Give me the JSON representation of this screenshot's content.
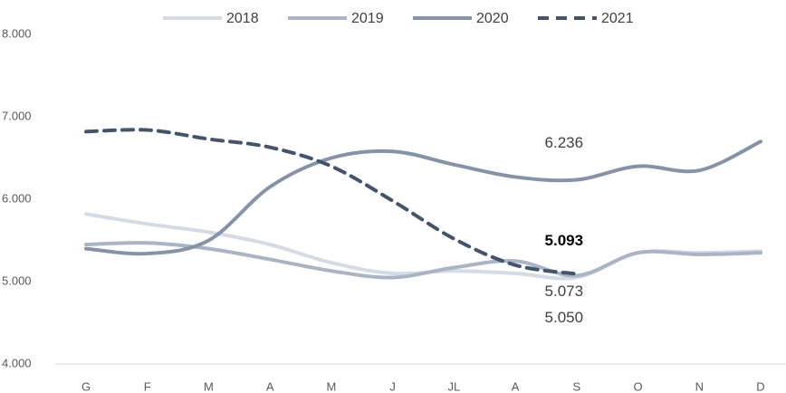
{
  "chart_data": {
    "type": "line",
    "categories": [
      "G",
      "F",
      "M",
      "A",
      "M",
      "J",
      "JL",
      "A",
      "S",
      "O",
      "N",
      "D"
    ],
    "series": [
      {
        "name": "2018",
        "color": "#d5dbe4",
        "dash": false,
        "values": [
          5820,
          5700,
          5600,
          5450,
          5230,
          5100,
          5130,
          5100,
          5050,
          5350,
          5350,
          5370
        ],
        "value_labels": [
          null,
          null,
          null,
          null,
          null,
          null,
          null,
          null,
          "5.050",
          null,
          null,
          null
        ]
      },
      {
        "name": "2019",
        "color": "#aab4c4",
        "dash": false,
        "values": [
          5450,
          5470,
          5400,
          5270,
          5130,
          5050,
          5170,
          5250,
          5073,
          5350,
          5330,
          5350
        ],
        "value_labels": [
          null,
          null,
          null,
          null,
          null,
          null,
          null,
          null,
          "5.073",
          null,
          null,
          null
        ]
      },
      {
        "name": "2020",
        "color": "#8593a8",
        "dash": false,
        "values": [
          5400,
          5340,
          5500,
          6150,
          6500,
          6580,
          6420,
          6270,
          6236,
          6400,
          6350,
          6700
        ],
        "value_labels": [
          null,
          null,
          null,
          null,
          null,
          null,
          null,
          null,
          "6.236",
          null,
          null,
          null
        ]
      },
      {
        "name": "2021",
        "color": "#44546a",
        "dash": true,
        "values": [
          6820,
          6840,
          6730,
          6630,
          6400,
          5980,
          5520,
          5200,
          5093,
          null,
          null,
          null
        ],
        "value_labels": [
          null,
          null,
          null,
          null,
          null,
          null,
          null,
          null,
          "5.093",
          null,
          null,
          null
        ]
      }
    ],
    "ylim": [
      4000,
      8000
    ],
    "yticks": [
      {
        "value": 4000,
        "label": "4.000"
      },
      {
        "value": 5000,
        "label": "5.000"
      },
      {
        "value": 6000,
        "label": "6.000"
      },
      {
        "value": 7000,
        "label": "7.000"
      },
      {
        "value": 8000,
        "label": "8.000"
      }
    ],
    "grid": false,
    "legend": "top"
  }
}
